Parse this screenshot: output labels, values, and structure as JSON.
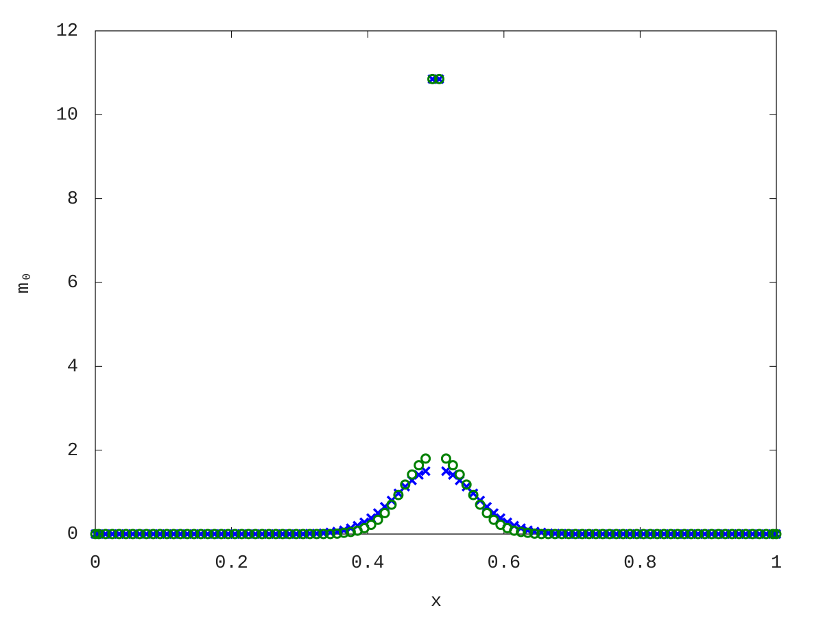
{
  "chart_data": {
    "type": "scatter",
    "xlabel": "x",
    "ylabel": "m₀",
    "xlim": [
      0,
      1
    ],
    "ylim": [
      0,
      12
    ],
    "xticks": [
      0,
      0.2,
      0.4,
      0.6,
      0.8,
      1
    ],
    "yticks": [
      0,
      2,
      4,
      6,
      8,
      10,
      12
    ],
    "zero_line": true,
    "x": [
      0,
      0.005,
      0.015,
      0.025,
      0.035,
      0.045,
      0.055,
      0.065,
      0.075,
      0.085,
      0.095,
      0.105,
      0.115,
      0.125,
      0.135,
      0.145,
      0.155,
      0.165,
      0.175,
      0.185,
      0.195,
      0.205,
      0.215,
      0.225,
      0.235,
      0.245,
      0.255,
      0.265,
      0.275,
      0.285,
      0.295,
      0.305,
      0.315,
      0.325,
      0.335,
      0.345,
      0.355,
      0.365,
      0.375,
      0.385,
      0.395,
      0.405,
      0.415,
      0.425,
      0.435,
      0.445,
      0.455,
      0.465,
      0.475,
      0.485,
      0.495,
      0.505,
      0.515,
      0.525,
      0.535,
      0.545,
      0.555,
      0.565,
      0.575,
      0.585,
      0.595,
      0.605,
      0.615,
      0.625,
      0.635,
      0.645,
      0.655,
      0.665,
      0.675,
      0.685,
      0.695,
      0.705,
      0.715,
      0.725,
      0.735,
      0.745,
      0.755,
      0.765,
      0.775,
      0.785,
      0.795,
      0.805,
      0.815,
      0.825,
      0.835,
      0.845,
      0.855,
      0.865,
      0.875,
      0.885,
      0.895,
      0.905,
      0.915,
      0.925,
      0.935,
      0.945,
      0.955,
      0.965,
      0.975,
      0.985,
      0.995,
      1
    ],
    "series": [
      {
        "marker": "cross",
        "color": "#0000ff",
        "values": [
          0,
          0,
          0,
          0,
          0,
          0,
          0,
          0,
          0,
          0,
          0,
          0,
          0,
          0,
          0,
          0,
          0,
          0,
          0,
          0,
          0,
          0,
          0,
          0,
          0,
          0,
          0,
          0,
          0,
          0,
          0,
          0,
          0.01,
          0.01,
          0.02,
          0.04,
          0.06,
          0.09,
          0.14,
          0.2,
          0.28,
          0.38,
          0.5,
          0.65,
          0.8,
          0.97,
          1.13,
          1.28,
          1.41,
          1.5,
          10.85,
          10.85,
          1.5,
          1.41,
          1.28,
          1.13,
          0.97,
          0.8,
          0.65,
          0.5,
          0.38,
          0.28,
          0.2,
          0.14,
          0.09,
          0.06,
          0.04,
          0.02,
          0.01,
          0.01,
          0,
          0,
          0,
          0,
          0,
          0,
          0,
          0,
          0,
          0,
          0,
          0,
          0,
          0,
          0,
          0,
          0,
          0,
          0,
          0,
          0,
          0,
          0,
          0,
          0,
          0,
          0,
          0,
          0,
          0,
          0,
          0
        ]
      },
      {
        "marker": "circle",
        "color": "#008000",
        "values": [
          0,
          0,
          0,
          0,
          0,
          0,
          0,
          0,
          0,
          0,
          0,
          0,
          0,
          0,
          0,
          0,
          0,
          0,
          0,
          0,
          0,
          0,
          0,
          0,
          0,
          0,
          0,
          0,
          0,
          0,
          0,
          0,
          0,
          0,
          0,
          0,
          0.01,
          0.03,
          0.05,
          0.08,
          0.14,
          0.22,
          0.34,
          0.5,
          0.7,
          0.93,
          1.18,
          1.42,
          1.64,
          1.8,
          10.85,
          10.85,
          1.8,
          1.64,
          1.42,
          1.18,
          0.93,
          0.7,
          0.5,
          0.34,
          0.22,
          0.14,
          0.08,
          0.05,
          0.03,
          0.01,
          0,
          0,
          0,
          0,
          0,
          0,
          0,
          0,
          0,
          0,
          0,
          0,
          0,
          0,
          0,
          0,
          0,
          0,
          0,
          0,
          0,
          0,
          0,
          0,
          0,
          0,
          0,
          0,
          0,
          0,
          0,
          0,
          0,
          0,
          0,
          0
        ]
      }
    ]
  }
}
